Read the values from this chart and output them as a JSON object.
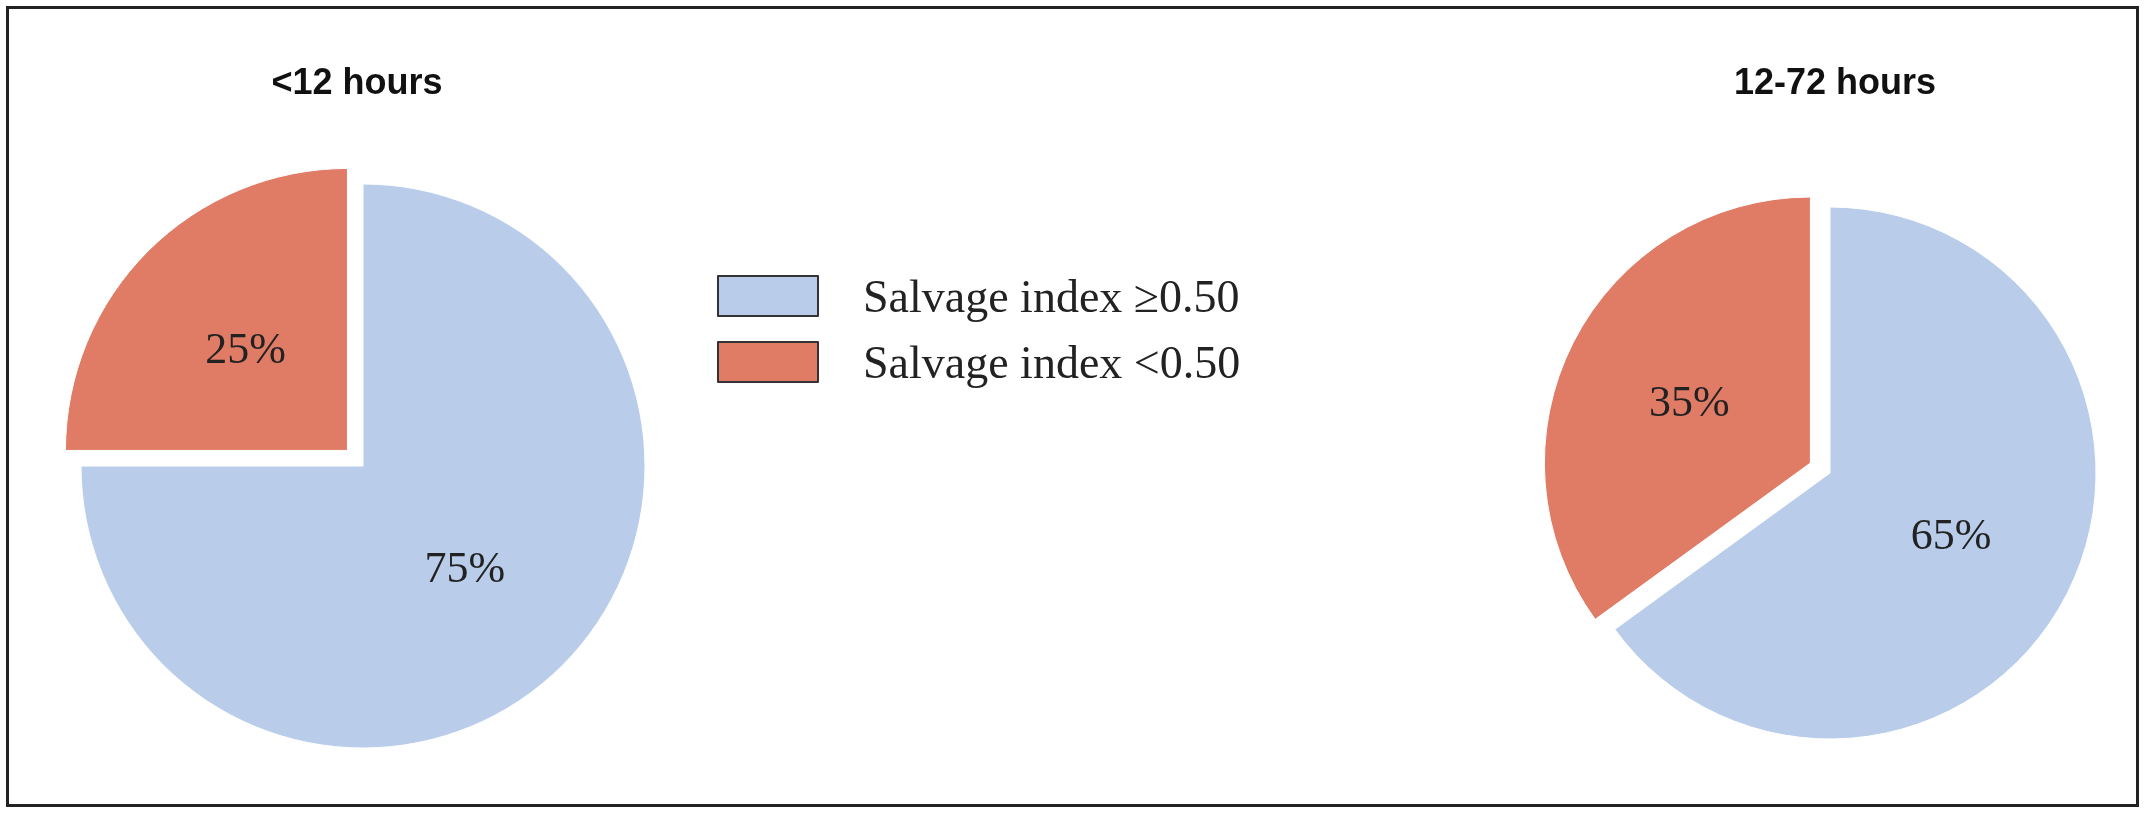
{
  "chart_data": [
    {
      "type": "pie",
      "title": "<12 hours",
      "categories": [
        "Salvage index ≥0.50",
        "Salvage index <0.50"
      ],
      "values": [
        75,
        25
      ],
      "value_labels": [
        "75%",
        "25%"
      ],
      "colors": [
        "#b9cdeb",
        "#e07b66"
      ],
      "legend": "right"
    },
    {
      "type": "pie",
      "title": "12-72 hours",
      "categories": [
        null,
        null
      ],
      "values": [
        65,
        35
      ],
      "value_labels": [
        "65%",
        "35%"
      ],
      "colors": [
        "#b9cdeb",
        "#e07b66"
      ],
      "legend": false
    }
  ]
}
